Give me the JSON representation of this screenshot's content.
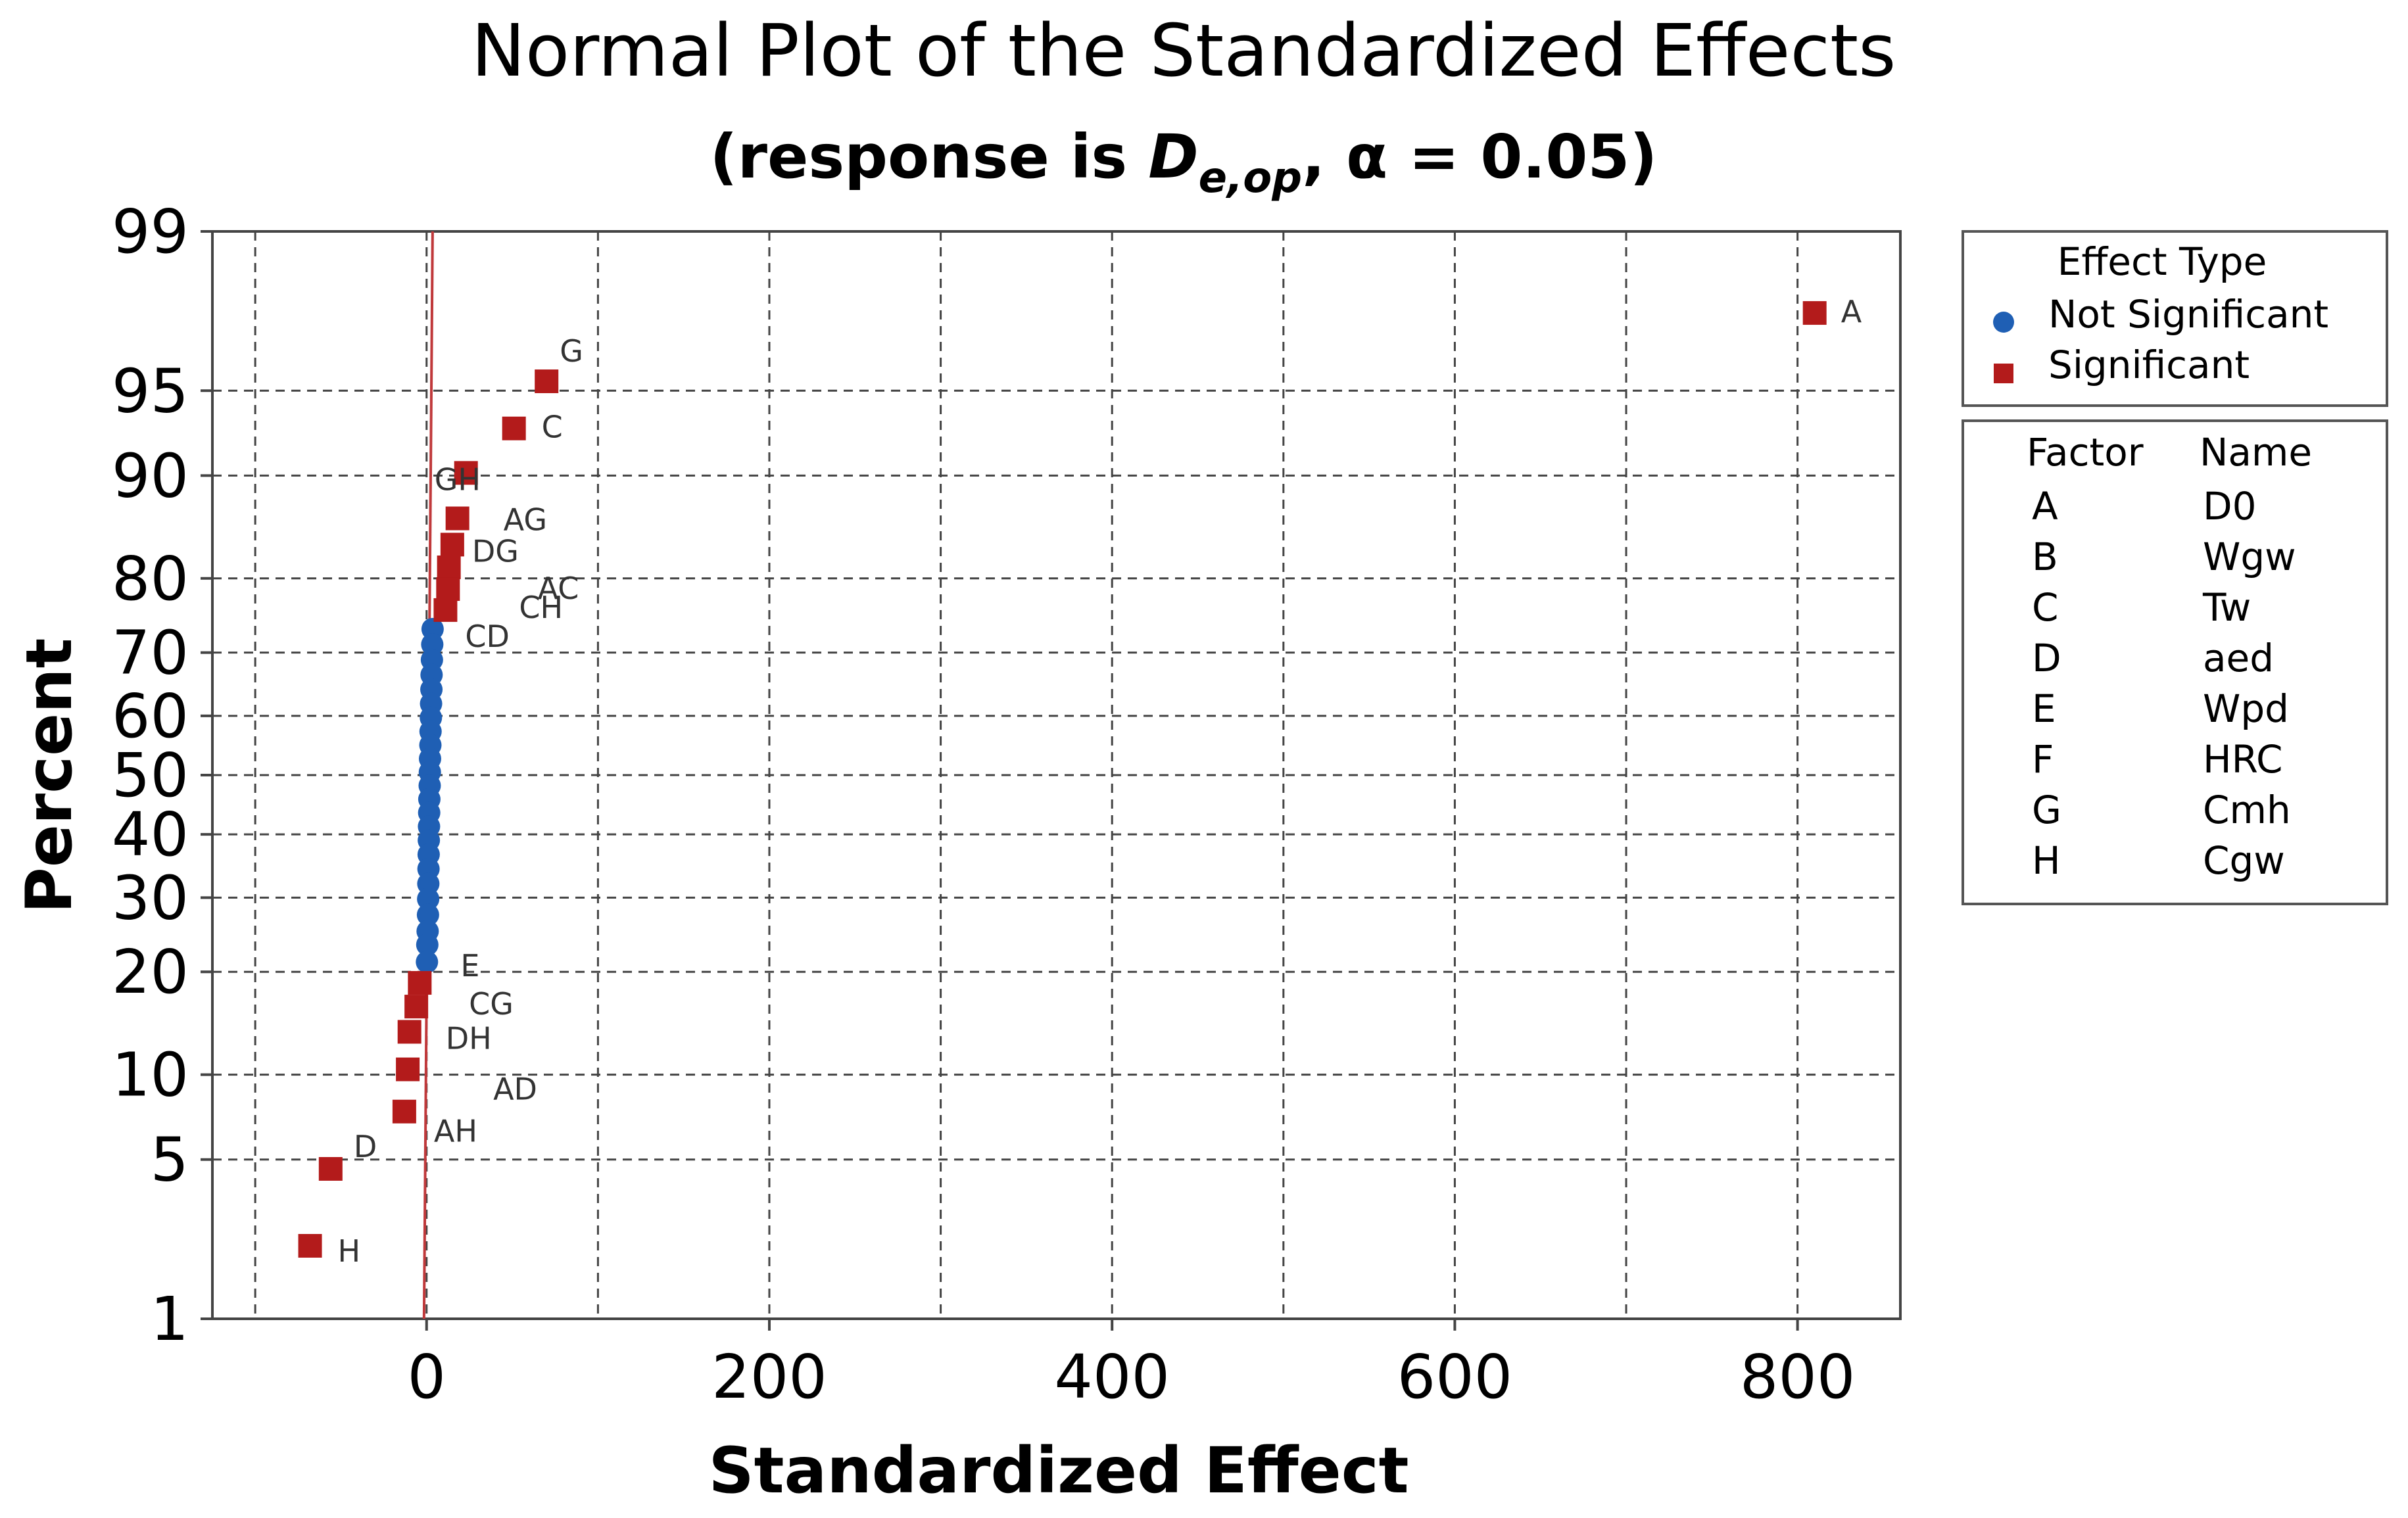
{
  "chart_data": {
    "type": "scatter",
    "title": "Normal Plot of the Standardized Effects",
    "subtitle": {
      "prefix": "(response is ",
      "var_main": "D",
      "var_sub": "e,op",
      "separator": ", ",
      "alpha_symbol": "α",
      "suffix": " = 0.05)"
    },
    "xlabel": "Standardized Effect",
    "ylabel": "Percent",
    "xlim": [
      -125,
      860
    ],
    "ylim": [
      1,
      99
    ],
    "x_ticks": [
      0,
      200,
      400,
      600,
      800
    ],
    "x_gridlines": [
      -100,
      0,
      100,
      200,
      300,
      400,
      500,
      600,
      700,
      800
    ],
    "y_ticks": [
      1,
      5,
      10,
      20,
      30,
      40,
      50,
      60,
      70,
      80,
      90,
      95,
      99
    ],
    "reference_line": {
      "x_at_1": -1.5,
      "x_at_99": 3.5
    },
    "colors": {
      "significant": "#b31b1b",
      "not_significant": "#1f5fb4",
      "reference": "#c0393b"
    },
    "significant_points": [
      {
        "label": "A",
        "x": 810,
        "y": 97.6
      },
      {
        "label": "G",
        "x": 70,
        "y": 95.4
      },
      {
        "label": "C",
        "x": 51,
        "y": 93.1
      },
      {
        "label": "GH",
        "x": 23,
        "y": 90.2
      },
      {
        "label": "AG",
        "x": 18,
        "y": 86.4
      },
      {
        "label": "DG",
        "x": 15,
        "y": 83.8
      },
      {
        "label": "AC",
        "x": 13,
        "y": 81.3
      },
      {
        "label": "CH",
        "x": 12.5,
        "y": 78.7
      },
      {
        "label": "CD",
        "x": 11,
        "y": 76.0
      },
      {
        "label": "E",
        "x": -4,
        "y": 18.7
      },
      {
        "label": "CG",
        "x": -6,
        "y": 16.1
      },
      {
        "label": "DH",
        "x": -10,
        "y": 13.6
      },
      {
        "label": "AD",
        "x": -11,
        "y": 10.4
      },
      {
        "label": "AH",
        "x": -13,
        "y": 7.5
      },
      {
        "label": "D",
        "x": -56,
        "y": 4.6
      },
      {
        "label": "H",
        "x": -68,
        "y": 2.2
      }
    ],
    "not_significant_points": [
      {
        "x": 3.5,
        "y": 73.4
      },
      {
        "x": 3.3,
        "y": 71.2
      },
      {
        "x": 3.1,
        "y": 68.9
      },
      {
        "x": 2.9,
        "y": 66.6
      },
      {
        "x": 2.8,
        "y": 64.3
      },
      {
        "x": 2.6,
        "y": 62.0
      },
      {
        "x": 2.5,
        "y": 59.7
      },
      {
        "x": 2.3,
        "y": 57.4
      },
      {
        "x": 2.2,
        "y": 55.1
      },
      {
        "x": 2.0,
        "y": 52.8
      },
      {
        "x": 1.9,
        "y": 50.5
      },
      {
        "x": 1.8,
        "y": 48.2
      },
      {
        "x": 1.6,
        "y": 45.9
      },
      {
        "x": 1.5,
        "y": 43.6
      },
      {
        "x": 1.4,
        "y": 41.3
      },
      {
        "x": 1.3,
        "y": 39.0
      },
      {
        "x": 1.2,
        "y": 36.7
      },
      {
        "x": 1.1,
        "y": 34.4
      },
      {
        "x": 1.0,
        "y": 32.1
      },
      {
        "x": 0.9,
        "y": 29.8
      },
      {
        "x": 0.8,
        "y": 27.5
      },
      {
        "x": 0.6,
        "y": 25.2
      },
      {
        "x": 0.4,
        "y": 23.4
      },
      {
        "x": 0.2,
        "y": 21.2
      }
    ]
  },
  "legend": {
    "effect_type_title": "Effect Type",
    "not_significant_label": "Not Significant",
    "significant_label": "Significant",
    "factor_header": "Factor",
    "name_header": "Name",
    "factors": [
      {
        "factor": "A",
        "name": "D0"
      },
      {
        "factor": "B",
        "name": "Wgw"
      },
      {
        "factor": "C",
        "name": "Tw"
      },
      {
        "factor": "D",
        "name": "aed"
      },
      {
        "factor": "E",
        "name": "Wpd"
      },
      {
        "factor": "F",
        "name": "HRC"
      },
      {
        "factor": "G",
        "name": "Cmh"
      },
      {
        "factor": "H",
        "name": "Cgw"
      }
    ]
  }
}
